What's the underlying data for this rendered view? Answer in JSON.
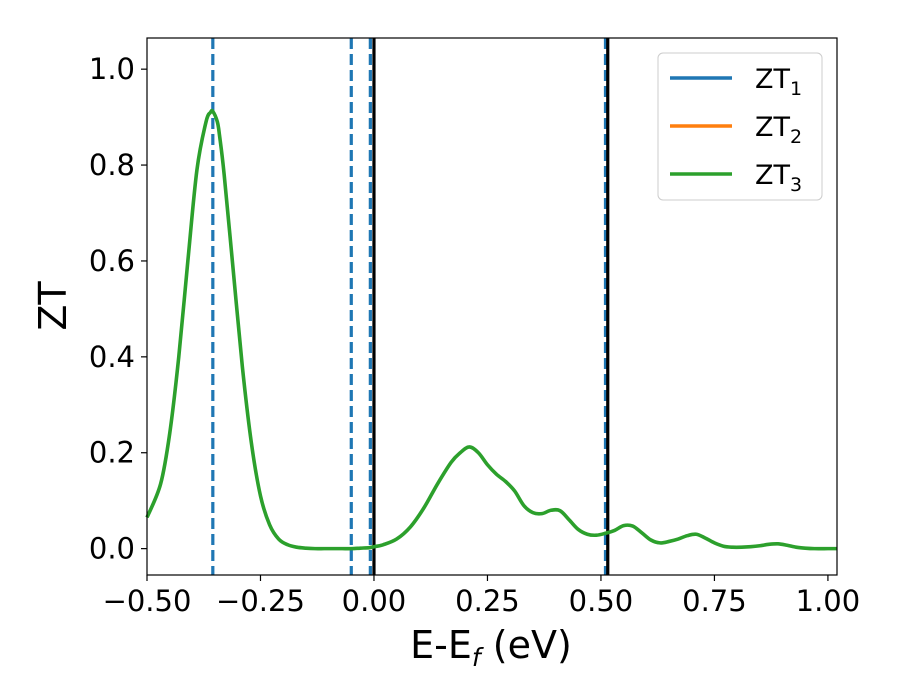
{
  "chart_data": {
    "type": "line",
    "xlabel": "E-E",
    "xlabel_sub": "f",
    "xlabel_unit": " (eV)",
    "ylabel": "ZT",
    "xlim": [
      -0.5,
      1.02
    ],
    "ylim": [
      -0.055,
      1.065
    ],
    "x_ticks": [
      -0.5,
      -0.25,
      0.0,
      0.25,
      0.5,
      0.75,
      1.0
    ],
    "x_tick_labels": [
      "−0.50",
      "−0.25",
      "0.00",
      "0.25",
      "0.50",
      "0.75",
      "1.00"
    ],
    "y_ticks": [
      0.0,
      0.2,
      0.4,
      0.6,
      0.8,
      1.0
    ],
    "y_tick_labels": [
      "0.0",
      "0.2",
      "0.4",
      "0.6",
      "0.8",
      "1.0"
    ],
    "grid": false,
    "legend_position": "top-right",
    "legend": [
      {
        "base": "ZT",
        "sub": "1",
        "color": "#1f77b4"
      },
      {
        "base": "ZT",
        "sub": "2",
        "color": "#ff7f0e"
      },
      {
        "base": "ZT",
        "sub": "3",
        "color": "#2ca02c"
      }
    ],
    "series": [
      {
        "color": "#2ca02c",
        "x": [
          -0.5,
          -0.47,
          -0.45,
          -0.43,
          -0.41,
          -0.39,
          -0.37,
          -0.36,
          -0.355,
          -0.345,
          -0.34,
          -0.33,
          -0.31,
          -0.29,
          -0.27,
          -0.25,
          -0.23,
          -0.21,
          -0.19,
          -0.17,
          -0.15,
          -0.13,
          -0.11,
          -0.09,
          -0.07,
          -0.05,
          -0.03,
          -0.01,
          0.0,
          0.02,
          0.05,
          0.08,
          0.11,
          0.14,
          0.17,
          0.19,
          0.21,
          0.23,
          0.25,
          0.27,
          0.29,
          0.31,
          0.33,
          0.35,
          0.37,
          0.39,
          0.41,
          0.43,
          0.45,
          0.47,
          0.49,
          0.51,
          0.53,
          0.55,
          0.57,
          0.59,
          0.61,
          0.63,
          0.65,
          0.67,
          0.69,
          0.71,
          0.73,
          0.75,
          0.77,
          0.79,
          0.81,
          0.83,
          0.85,
          0.87,
          0.89,
          0.91,
          0.93,
          0.95,
          0.97,
          1.0,
          1.02
        ],
        "values": [
          0.065,
          0.135,
          0.24,
          0.4,
          0.6,
          0.79,
          0.89,
          0.91,
          0.912,
          0.89,
          0.86,
          0.78,
          0.58,
          0.38,
          0.22,
          0.11,
          0.05,
          0.02,
          0.008,
          0.003,
          0.001,
          0.0,
          0.0,
          0.0,
          0.0,
          0.0,
          0.001,
          0.002,
          0.004,
          0.008,
          0.02,
          0.045,
          0.085,
          0.135,
          0.18,
          0.2,
          0.212,
          0.2,
          0.175,
          0.155,
          0.14,
          0.12,
          0.09,
          0.075,
          0.073,
          0.08,
          0.079,
          0.06,
          0.04,
          0.03,
          0.028,
          0.032,
          0.038,
          0.048,
          0.047,
          0.033,
          0.018,
          0.012,
          0.015,
          0.02,
          0.027,
          0.03,
          0.022,
          0.012,
          0.005,
          0.003,
          0.003,
          0.004,
          0.006,
          0.009,
          0.01,
          0.007,
          0.003,
          0.001,
          0.0,
          0.0,
          0.0
        ]
      }
    ],
    "vlines": [
      {
        "x": -0.355,
        "style": "dashed",
        "color": "#1f77b4"
      },
      {
        "x": -0.05,
        "style": "dashed",
        "color": "#1f77b4"
      },
      {
        "x": -0.008,
        "style": "dashed",
        "color": "#1f77b4"
      },
      {
        "x": 0.0,
        "style": "solid",
        "color": "#000000"
      },
      {
        "x": 0.51,
        "style": "dashed",
        "color": "#1f77b4"
      },
      {
        "x": 0.515,
        "style": "solid",
        "color": "#000000"
      }
    ]
  }
}
